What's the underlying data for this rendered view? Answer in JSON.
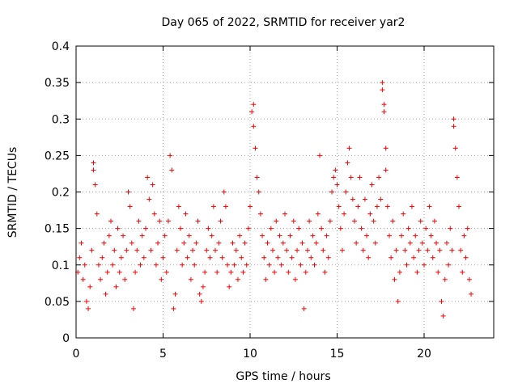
{
  "chart_data": {
    "type": "scatter",
    "title": "Day 065 of 2022, SRMTID for receiver yar2",
    "xlabel": "GPS time / hours",
    "ylabel": "SRMTID / TECUs",
    "xlim": [
      0,
      24
    ],
    "ylim": [
      0,
      0.4
    ],
    "xticks": [
      0,
      5,
      10,
      15,
      20
    ],
    "xtick_labels": [
      "0",
      "5",
      "10",
      "15",
      "20"
    ],
    "yticks": [
      0,
      0.05,
      0.1,
      0.15,
      0.2,
      0.25,
      0.3,
      0.35,
      0.4
    ],
    "ytick_labels": [
      "0",
      "0.05",
      "0.1",
      "0.15",
      "0.2",
      "0.25",
      "0.3",
      "0.35",
      "0.4"
    ],
    "grid": true,
    "marker": "+",
    "color": "#ff0000",
    "series": [
      {
        "name": "SRMTID",
        "points": [
          [
            0.1,
            0.09
          ],
          [
            0.2,
            0.11
          ],
          [
            0.3,
            0.13
          ],
          [
            0.4,
            0.08
          ],
          [
            0.5,
            0.1
          ],
          [
            0.6,
            0.05
          ],
          [
            0.7,
            0.04
          ],
          [
            0.8,
            0.07
          ],
          [
            0.9,
            0.12
          ],
          [
            1.0,
            0.24
          ],
          [
            1.0,
            0.23
          ],
          [
            1.1,
            0.21
          ],
          [
            1.2,
            0.17
          ],
          [
            1.3,
            0.1
          ],
          [
            1.4,
            0.08
          ],
          [
            1.5,
            0.11
          ],
          [
            1.6,
            0.13
          ],
          [
            1.7,
            0.06
          ],
          [
            1.8,
            0.09
          ],
          [
            1.9,
            0.14
          ],
          [
            2.0,
            0.16
          ],
          [
            2.1,
            0.1
          ],
          [
            2.2,
            0.12
          ],
          [
            2.3,
            0.07
          ],
          [
            2.4,
            0.15
          ],
          [
            2.5,
            0.09
          ],
          [
            2.6,
            0.11
          ],
          [
            2.7,
            0.14
          ],
          [
            2.8,
            0.08
          ],
          [
            2.9,
            0.12
          ],
          [
            3.0,
            0.2
          ],
          [
            3.1,
            0.18
          ],
          [
            3.2,
            0.13
          ],
          [
            3.3,
            0.04
          ],
          [
            3.4,
            0.09
          ],
          [
            3.5,
            0.12
          ],
          [
            3.6,
            0.16
          ],
          [
            3.7,
            0.1
          ],
          [
            3.8,
            0.14
          ],
          [
            3.9,
            0.11
          ],
          [
            4.0,
            0.15
          ],
          [
            4.1,
            0.22
          ],
          [
            4.2,
            0.19
          ],
          [
            4.3,
            0.12
          ],
          [
            4.4,
            0.21
          ],
          [
            4.5,
            0.17
          ],
          [
            4.6,
            0.1
          ],
          [
            4.7,
            0.13
          ],
          [
            4.8,
            0.16
          ],
          [
            4.9,
            0.08
          ],
          [
            5.0,
            0.11
          ],
          [
            5.1,
            0.14
          ],
          [
            5.2,
            0.09
          ],
          [
            5.3,
            0.16
          ],
          [
            5.4,
            0.25
          ],
          [
            5.5,
            0.23
          ],
          [
            5.6,
            0.04
          ],
          [
            5.7,
            0.06
          ],
          [
            5.8,
            0.12
          ],
          [
            5.9,
            0.18
          ],
          [
            6.0,
            0.15
          ],
          [
            6.1,
            0.1
          ],
          [
            6.2,
            0.13
          ],
          [
            6.3,
            0.17
          ],
          [
            6.4,
            0.11
          ],
          [
            6.5,
            0.14
          ],
          [
            6.6,
            0.08
          ],
          [
            6.7,
            0.12
          ],
          [
            6.8,
            0.1
          ],
          [
            6.9,
            0.13
          ],
          [
            7.0,
            0.16
          ],
          [
            7.1,
            0.06
          ],
          [
            7.2,
            0.05
          ],
          [
            7.3,
            0.07
          ],
          [
            7.4,
            0.09
          ],
          [
            7.5,
            0.12
          ],
          [
            7.6,
            0.15
          ],
          [
            7.7,
            0.11
          ],
          [
            7.8,
            0.14
          ],
          [
            7.9,
            0.18
          ],
          [
            8.0,
            0.12
          ],
          [
            8.1,
            0.09
          ],
          [
            8.2,
            0.13
          ],
          [
            8.3,
            0.16
          ],
          [
            8.4,
            0.11
          ],
          [
            8.5,
            0.2
          ],
          [
            8.6,
            0.18
          ],
          [
            8.7,
            0.1
          ],
          [
            8.8,
            0.07
          ],
          [
            8.9,
            0.09
          ],
          [
            9.0,
            0.13
          ],
          [
            9.1,
            0.1
          ],
          [
            9.2,
            0.12
          ],
          [
            9.3,
            0.08
          ],
          [
            9.4,
            0.14
          ],
          [
            9.5,
            0.11
          ],
          [
            9.6,
            0.09
          ],
          [
            9.7,
            0.13
          ],
          [
            9.8,
            0.1
          ],
          [
            9.9,
            0.15
          ],
          [
            10.0,
            0.18
          ],
          [
            10.1,
            0.31
          ],
          [
            10.2,
            0.32
          ],
          [
            10.2,
            0.29
          ],
          [
            10.3,
            0.26
          ],
          [
            10.4,
            0.22
          ],
          [
            10.5,
            0.2
          ],
          [
            10.6,
            0.17
          ],
          [
            10.7,
            0.14
          ],
          [
            10.8,
            0.11
          ],
          [
            10.9,
            0.08
          ],
          [
            11.0,
            0.13
          ],
          [
            11.1,
            0.1
          ],
          [
            11.2,
            0.15
          ],
          [
            11.3,
            0.12
          ],
          [
            11.4,
            0.09
          ],
          [
            11.5,
            0.16
          ],
          [
            11.6,
            0.11
          ],
          [
            11.7,
            0.14
          ],
          [
            11.8,
            0.1
          ],
          [
            11.9,
            0.13
          ],
          [
            12.0,
            0.17
          ],
          [
            12.1,
            0.12
          ],
          [
            12.2,
            0.09
          ],
          [
            12.3,
            0.14
          ],
          [
            12.4,
            0.11
          ],
          [
            12.5,
            0.16
          ],
          [
            12.6,
            0.08
          ],
          [
            12.7,
            0.12
          ],
          [
            12.8,
            0.15
          ],
          [
            12.9,
            0.1
          ],
          [
            13.0,
            0.13
          ],
          [
            13.1,
            0.04
          ],
          [
            13.2,
            0.09
          ],
          [
            13.3,
            0.12
          ],
          [
            13.4,
            0.16
          ],
          [
            13.5,
            0.11
          ],
          [
            13.6,
            0.14
          ],
          [
            13.7,
            0.1
          ],
          [
            13.8,
            0.13
          ],
          [
            13.9,
            0.17
          ],
          [
            14.0,
            0.25
          ],
          [
            14.1,
            0.15
          ],
          [
            14.2,
            0.12
          ],
          [
            14.3,
            0.09
          ],
          [
            14.4,
            0.14
          ],
          [
            14.5,
            0.11
          ],
          [
            14.6,
            0.16
          ],
          [
            14.7,
            0.2
          ],
          [
            14.8,
            0.22
          ],
          [
            14.9,
            0.23
          ],
          [
            15.0,
            0.21
          ],
          [
            15.1,
            0.18
          ],
          [
            15.2,
            0.15
          ],
          [
            15.3,
            0.12
          ],
          [
            15.4,
            0.17
          ],
          [
            15.5,
            0.2
          ],
          [
            15.6,
            0.24
          ],
          [
            15.7,
            0.26
          ],
          [
            15.8,
            0.22
          ],
          [
            15.9,
            0.19
          ],
          [
            16.0,
            0.16
          ],
          [
            16.1,
            0.13
          ],
          [
            16.2,
            0.18
          ],
          [
            16.3,
            0.22
          ],
          [
            16.4,
            0.15
          ],
          [
            16.5,
            0.12
          ],
          [
            16.6,
            0.19
          ],
          [
            16.7,
            0.14
          ],
          [
            16.8,
            0.11
          ],
          [
            16.9,
            0.17
          ],
          [
            17.0,
            0.21
          ],
          [
            17.1,
            0.16
          ],
          [
            17.2,
            0.13
          ],
          [
            17.3,
            0.18
          ],
          [
            17.4,
            0.22
          ],
          [
            17.5,
            0.19
          ],
          [
            17.6,
            0.35
          ],
          [
            17.6,
            0.34
          ],
          [
            17.7,
            0.32
          ],
          [
            17.7,
            0.31
          ],
          [
            17.8,
            0.26
          ],
          [
            17.8,
            0.23
          ],
          [
            17.9,
            0.18
          ],
          [
            18.0,
            0.14
          ],
          [
            18.1,
            0.11
          ],
          [
            18.2,
            0.16
          ],
          [
            18.3,
            0.08
          ],
          [
            18.4,
            0.12
          ],
          [
            18.5,
            0.05
          ],
          [
            18.6,
            0.09
          ],
          [
            18.7,
            0.14
          ],
          [
            18.8,
            0.17
          ],
          [
            18.9,
            0.12
          ],
          [
            19.0,
            0.1
          ],
          [
            19.1,
            0.15
          ],
          [
            19.2,
            0.13
          ],
          [
            19.3,
            0.18
          ],
          [
            19.4,
            0.11
          ],
          [
            19.5,
            0.14
          ],
          [
            19.6,
            0.09
          ],
          [
            19.7,
            0.12
          ],
          [
            19.8,
            0.16
          ],
          [
            19.9,
            0.13
          ],
          [
            20.0,
            0.1
          ],
          [
            20.1,
            0.15
          ],
          [
            20.2,
            0.12
          ],
          [
            20.3,
            0.18
          ],
          [
            20.4,
            0.14
          ],
          [
            20.5,
            0.11
          ],
          [
            20.6,
            0.16
          ],
          [
            20.7,
            0.13
          ],
          [
            20.8,
            0.09
          ],
          [
            20.9,
            0.12
          ],
          [
            21.0,
            0.05
          ],
          [
            21.1,
            0.03
          ],
          [
            21.2,
            0.08
          ],
          [
            21.3,
            0.13
          ],
          [
            21.4,
            0.1
          ],
          [
            21.5,
            0.15
          ],
          [
            21.6,
            0.12
          ],
          [
            21.7,
            0.3
          ],
          [
            21.7,
            0.29
          ],
          [
            21.8,
            0.26
          ],
          [
            21.9,
            0.22
          ],
          [
            22.0,
            0.18
          ],
          [
            22.1,
            0.12
          ],
          [
            22.2,
            0.09
          ],
          [
            22.3,
            0.14
          ],
          [
            22.4,
            0.11
          ],
          [
            22.5,
            0.15
          ],
          [
            22.6,
            0.08
          ],
          [
            22.7,
            0.06
          ]
        ]
      }
    ]
  }
}
